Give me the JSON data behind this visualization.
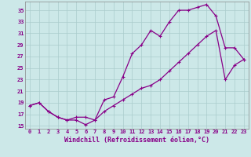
{
  "xlabel": "Windchill (Refroidissement éolien,°C)",
  "xlim": [
    -0.5,
    23.5
  ],
  "ylim": [
    14.5,
    36.5
  ],
  "yticks": [
    15,
    17,
    19,
    21,
    23,
    25,
    27,
    29,
    31,
    33,
    35
  ],
  "xticks": [
    0,
    1,
    2,
    3,
    4,
    5,
    6,
    7,
    8,
    9,
    10,
    11,
    12,
    13,
    14,
    15,
    16,
    17,
    18,
    19,
    20,
    21,
    22,
    23
  ],
  "background_color": "#cce8e8",
  "grid_color": "#aacccc",
  "line_color": "#880088",
  "line1_x": [
    0,
    1,
    2,
    3,
    4,
    5,
    6,
    7,
    8,
    9,
    10,
    11,
    12,
    13,
    14,
    15,
    16,
    17,
    18,
    19,
    20,
    21,
    22,
    23
  ],
  "line1_y": [
    18.5,
    19.0,
    17.5,
    16.5,
    16.0,
    16.5,
    16.5,
    16.0,
    19.5,
    20.0,
    23.5,
    27.5,
    29.0,
    31.5,
    30.5,
    33.0,
    35.0,
    35.0,
    35.5,
    36.0,
    34.0,
    28.5,
    28.5,
    26.5
  ],
  "line2_x": [
    0,
    1,
    2,
    3,
    4,
    5,
    6,
    7,
    8,
    9,
    10,
    11,
    12,
    13,
    14,
    15,
    16,
    17,
    18,
    19,
    20,
    21,
    22,
    23
  ],
  "line2_y": [
    18.5,
    19.0,
    17.5,
    16.5,
    16.0,
    16.0,
    15.2,
    16.0,
    17.5,
    18.5,
    19.5,
    20.5,
    21.5,
    22.0,
    23.0,
    24.5,
    26.0,
    27.5,
    29.0,
    30.5,
    31.5,
    23.0,
    25.5,
    26.5
  ],
  "line3_x": [
    0,
    23
  ],
  "line3_y": [
    18.5,
    26.5
  ],
  "marker": "+",
  "marker_size": 3.5,
  "line_width": 0.9,
  "tick_fontsize": 5.0,
  "label_fontsize": 6.0
}
